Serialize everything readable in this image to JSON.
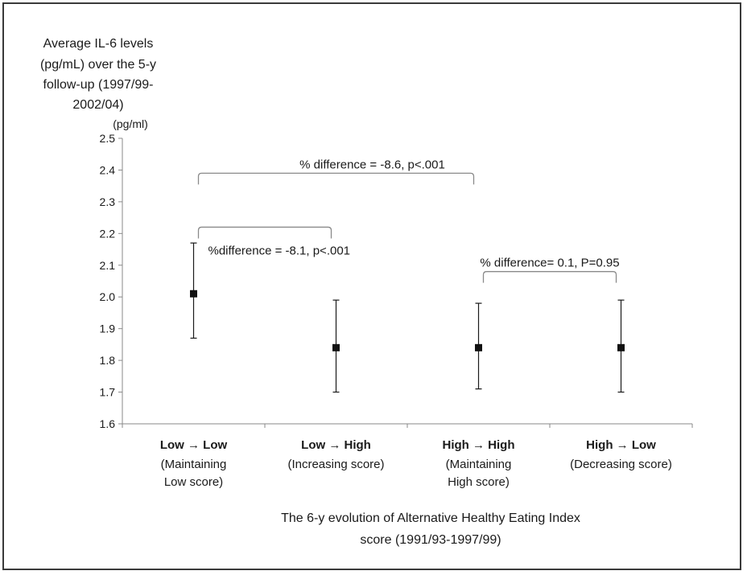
{
  "chart_data": {
    "type": "scatter",
    "ylabel_lines": [
      "Average IL-6 levels",
      "(pg/mL) over the 5-y",
      "follow-up (1997/99-",
      "2002/04)"
    ],
    "y_unit": "(pg/ml)",
    "ylim": [
      1.6,
      2.5
    ],
    "yticks": [
      "2.5",
      "2.4",
      "2.3",
      "2.2",
      "2.1",
      "2.0",
      "1.9",
      "1.8",
      "1.7",
      "1.6"
    ],
    "categories": [
      {
        "main": "Low  → Low",
        "sub": [
          "(Maintaining",
          "Low score)"
        ]
      },
      {
        "main": "Low  → High",
        "sub": [
          "(Increasing score)"
        ]
      },
      {
        "main": "High  → High",
        "sub": [
          "(Maintaining",
          "High score)"
        ]
      },
      {
        "main": "High  → Low",
        "sub": [
          "(Decreasing score)"
        ]
      }
    ],
    "series": [
      {
        "values": [
          2.01,
          1.84,
          1.84,
          1.84
        ],
        "lower": [
          1.87,
          1.7,
          1.71,
          1.7
        ],
        "upper": [
          2.17,
          1.99,
          1.98,
          1.99
        ]
      }
    ],
    "annotations": [
      {
        "text": "% difference = -8.6, p<.001",
        "from": 0,
        "to": 2,
        "level": 2.39
      },
      {
        "text": "%difference = -8.1, p<.001",
        "from": 0,
        "to": 1,
        "level": 2.22
      },
      {
        "text": "% difference= 0.1, P=0.95",
        "from": 2,
        "to": 3,
        "level": 2.08
      }
    ],
    "xlabel_lines": [
      "The 6-y evolution of  Alternative Healthy Eating Index",
      "score (1991/93-1997/99)"
    ],
    "grid": false
  }
}
